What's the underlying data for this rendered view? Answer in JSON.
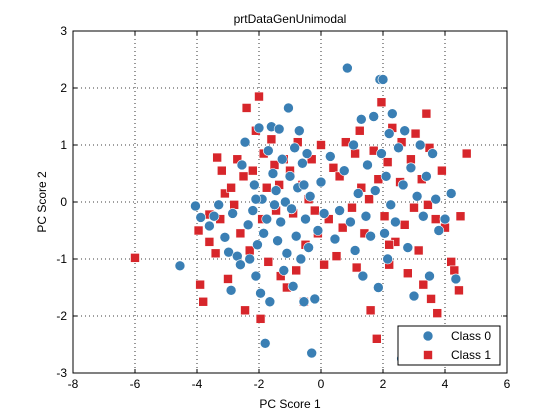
{
  "chart_data": {
    "type": "scatter",
    "title": "prtDataGenUnimodal",
    "xlabel": "PC Score 1",
    "ylabel": "PC Score 2",
    "xlim": [
      -8,
      6
    ],
    "ylim": [
      -3,
      3
    ],
    "xticks": [
      -8,
      -6,
      -4,
      -2,
      0,
      2,
      4,
      6
    ],
    "yticks": [
      -3,
      -2,
      -1,
      0,
      1,
      2,
      3
    ],
    "grid": "dotted",
    "legend_position": "bottom-right",
    "series": [
      {
        "name": "Class 0",
        "marker": "circle",
        "color": "#3A7FB4",
        "points": [
          [
            -4.55,
            -1.12
          ],
          [
            -4.05,
            -0.07
          ],
          [
            -3.88,
            -0.27
          ],
          [
            -3.6,
            -0.42
          ],
          [
            -3.45,
            -0.25
          ],
          [
            -3.3,
            -0.05
          ],
          [
            -3.1,
            -0.62
          ],
          [
            -2.98,
            -0.88
          ],
          [
            -2.9,
            -1.55
          ],
          [
            -2.85,
            -0.2
          ],
          [
            -2.7,
            -0.95
          ],
          [
            -2.6,
            -1.1
          ],
          [
            -2.55,
            0.65
          ],
          [
            -2.45,
            1.05
          ],
          [
            -2.35,
            -0.4
          ],
          [
            -2.3,
            -1.0
          ],
          [
            -2.2,
            -0.15
          ],
          [
            -2.15,
            0.3
          ],
          [
            -2.1,
            -1.3
          ],
          [
            -2.05,
            -0.75
          ],
          [
            -2.0,
            1.3
          ],
          [
            -1.95,
            -1.6
          ],
          [
            -1.9,
            0.05
          ],
          [
            -1.85,
            -0.55
          ],
          [
            -1.8,
            -2.48
          ],
          [
            -1.75,
            -0.3
          ],
          [
            -1.7,
            0.9
          ],
          [
            -1.65,
            -1.75
          ],
          [
            -1.6,
            1.32
          ],
          [
            -1.55,
            0.5
          ],
          [
            -1.5,
            -0.05
          ],
          [
            -1.45,
            0.2
          ],
          [
            -1.4,
            -0.68
          ],
          [
            -1.35,
            1.28
          ],
          [
            -1.3,
            -0.35
          ],
          [
            -1.25,
            0.75
          ],
          [
            -1.2,
            -1.2
          ],
          [
            -1.15,
            0.0
          ],
          [
            -1.1,
            -0.9
          ],
          [
            -1.05,
            1.65
          ],
          [
            -1.0,
            0.45
          ],
          [
            -0.95,
            -0.12
          ],
          [
            -0.9,
            -1.48
          ],
          [
            -0.85,
            0.95
          ],
          [
            -0.8,
            -0.6
          ],
          [
            -0.75,
            0.25
          ],
          [
            -0.7,
            1.25
          ],
          [
            -0.65,
            -1.0
          ],
          [
            -0.6,
            0.68
          ],
          [
            -0.55,
            -1.75
          ],
          [
            -0.5,
            -0.3
          ],
          [
            -0.45,
            0.85
          ],
          [
            -0.4,
            -0.8
          ],
          [
            -0.35,
            0.1
          ],
          [
            -0.3,
            -2.65
          ],
          [
            -0.2,
            -1.7
          ],
          [
            -0.1,
            -0.5
          ],
          [
            0.0,
            0.35
          ],
          [
            0.1,
            -0.2
          ],
          [
            0.3,
            0.8
          ],
          [
            0.45,
            -0.65
          ],
          [
            0.6,
            -0.15
          ],
          [
            0.75,
            0.55
          ],
          [
            0.85,
            2.35
          ],
          [
            0.95,
            -0.35
          ],
          [
            1.05,
            1.0
          ],
          [
            1.1,
            -0.85
          ],
          [
            1.2,
            0.15
          ],
          [
            1.3,
            1.45
          ],
          [
            1.35,
            -1.3
          ],
          [
            1.45,
            -0.25
          ],
          [
            1.5,
            0.65
          ],
          [
            1.6,
            -0.6
          ],
          [
            1.7,
            1.5
          ],
          [
            1.75,
            0.2
          ],
          [
            1.85,
            -1.5
          ],
          [
            1.9,
            2.15
          ],
          [
            1.95,
            0.85
          ],
          [
            2.0,
            2.15
          ],
          [
            2.05,
            -0.55
          ],
          [
            2.1,
            0.45
          ],
          [
            2.15,
            -1.0
          ],
          [
            2.2,
            1.2
          ],
          [
            2.25,
            -0.05
          ],
          [
            2.3,
            1.55
          ],
          [
            2.4,
            -0.35
          ],
          [
            2.5,
            0.95
          ],
          [
            2.6,
            -2.75
          ],
          [
            2.65,
            0.3
          ],
          [
            2.7,
            1.25
          ],
          [
            2.8,
            -0.8
          ],
          [
            2.9,
            0.6
          ],
          [
            3.0,
            -1.65
          ],
          [
            3.1,
            0.1
          ],
          [
            3.2,
            1.0
          ],
          [
            3.3,
            -0.25
          ],
          [
            3.4,
            0.45
          ],
          [
            3.5,
            -1.3
          ],
          [
            3.6,
            0.85
          ],
          [
            3.7,
            0.05
          ],
          [
            3.8,
            -0.5
          ],
          [
            4.0,
            -0.3
          ],
          [
            4.2,
            0.15
          ],
          [
            4.35,
            -1.35
          ],
          [
            -2.1,
            0.05
          ],
          [
            -0.55,
            0.3
          ]
        ]
      },
      {
        "name": "Class 1",
        "marker": "square",
        "color": "#D7262B",
        "points": [
          [
            -6.0,
            -0.98
          ],
          [
            -3.95,
            -0.5
          ],
          [
            -3.9,
            -1.45
          ],
          [
            -3.8,
            -1.75
          ],
          [
            -3.6,
            -0.22
          ],
          [
            -3.6,
            -0.7
          ],
          [
            -3.4,
            -0.9
          ],
          [
            -3.35,
            0.78
          ],
          [
            -3.25,
            -0.3
          ],
          [
            -3.2,
            0.55
          ],
          [
            -3.1,
            0.15
          ],
          [
            -3.0,
            -1.35
          ],
          [
            -2.9,
            0.25
          ],
          [
            -2.8,
            -0.05
          ],
          [
            -2.7,
            0.75
          ],
          [
            -2.6,
            -0.55
          ],
          [
            -2.5,
            0.45
          ],
          [
            -2.45,
            -1.9
          ],
          [
            -2.4,
            1.65
          ],
          [
            -2.3,
            -0.85
          ],
          [
            -2.2,
            0.55
          ],
          [
            -2.1,
            1.25
          ],
          [
            -2.0,
            1.85
          ],
          [
            -1.95,
            -2.05
          ],
          [
            -1.9,
            -0.3
          ],
          [
            -1.85,
            0.85
          ],
          [
            -1.75,
            0.25
          ],
          [
            -1.7,
            -1.05
          ],
          [
            -1.6,
            1.1
          ],
          [
            -1.5,
            0.65
          ],
          [
            -1.45,
            -0.15
          ],
          [
            -1.35,
            0.3
          ],
          [
            -1.3,
            -1.3
          ],
          [
            -1.2,
            0.75
          ],
          [
            -1.1,
            -1.5
          ],
          [
            -1.0,
            0.55
          ],
          [
            -0.9,
            -0.2
          ],
          [
            -0.8,
            -1.2
          ],
          [
            -0.75,
            1.05
          ],
          [
            -0.6,
            0.3
          ],
          [
            -0.55,
            -1.75
          ],
          [
            -0.5,
            -0.75
          ],
          [
            -0.4,
            0.05
          ],
          [
            -0.3,
            0.75
          ],
          [
            -0.2,
            -0.15
          ],
          [
            -0.1,
            -0.55
          ],
          [
            0.0,
            1.0
          ],
          [
            0.1,
            -1.1
          ],
          [
            0.25,
            -0.3
          ],
          [
            0.4,
            0.6
          ],
          [
            0.5,
            -0.95
          ],
          [
            0.6,
            0.45
          ],
          [
            0.7,
            -0.45
          ],
          [
            0.8,
            1.05
          ],
          [
            1.0,
            -0.1
          ],
          [
            1.1,
            0.85
          ],
          [
            1.15,
            -1.15
          ],
          [
            1.25,
            1.25
          ],
          [
            1.3,
            0.25
          ],
          [
            1.4,
            -0.55
          ],
          [
            1.55,
            0.05
          ],
          [
            1.6,
            -1.9
          ],
          [
            1.7,
            0.9
          ],
          [
            1.8,
            -2.4
          ],
          [
            1.85,
            0.4
          ],
          [
            1.95,
            1.75
          ],
          [
            2.05,
            -0.25
          ],
          [
            2.15,
            0.7
          ],
          [
            2.2,
            -1.1
          ],
          [
            2.3,
            1.3
          ],
          [
            2.4,
            -0.7
          ],
          [
            2.55,
            0.35
          ],
          [
            2.6,
            1.05
          ],
          [
            2.7,
            -0.4
          ],
          [
            2.8,
            -1.25
          ],
          [
            2.9,
            0.75
          ],
          [
            3.0,
            -0.1
          ],
          [
            3.05,
            1.2
          ],
          [
            3.15,
            -0.85
          ],
          [
            3.25,
            0.4
          ],
          [
            3.3,
            -1.45
          ],
          [
            3.4,
            1.55
          ],
          [
            3.45,
            -0.05
          ],
          [
            3.5,
            0.95
          ],
          [
            3.55,
            -1.7
          ],
          [
            3.7,
            -0.3
          ],
          [
            3.75,
            -1.95
          ],
          [
            3.9,
            0.55
          ],
          [
            4.0,
            -0.45
          ],
          [
            4.2,
            -1.05
          ],
          [
            4.3,
            -1.2
          ],
          [
            4.45,
            -1.55
          ],
          [
            4.5,
            -0.25
          ],
          [
            4.7,
            0.85
          ],
          [
            4.1,
            -2.25
          ],
          [
            2.2,
            -0.75
          ]
        ]
      }
    ]
  }
}
